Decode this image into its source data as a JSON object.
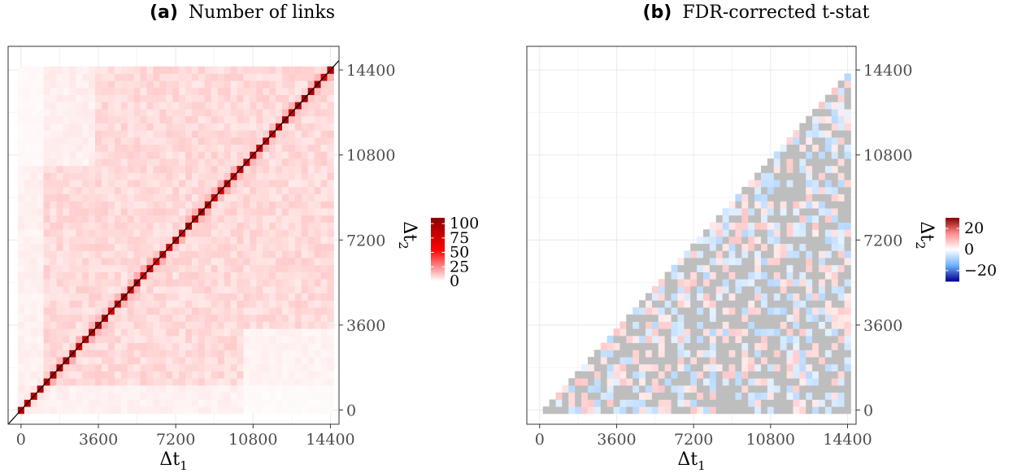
{
  "chart_data": [
    {
      "type": "heatmap",
      "panel": "(a)",
      "title": "Number of links",
      "xlabel": "Δt",
      "xlabel_sub": "1",
      "ylabel": "Δt",
      "ylabel_sub": "2",
      "x_ticks": [
        0,
        3600,
        7200,
        10800,
        14400
      ],
      "y_ticks": [
        0,
        3600,
        7200,
        10800,
        14400
      ],
      "xlim": [
        -600,
        14800
      ],
      "ylim": [
        -600,
        15400
      ],
      "grid_range": [
        0,
        14400
      ],
      "bins": 49,
      "color_scale": [
        "#ffffff",
        "#ff0000",
        "#8b0000"
      ],
      "legend": {
        "breaks": [
          0,
          25,
          50,
          75,
          100
        ],
        "labels": [
          "0",
          "25",
          "50",
          "75",
          "100"
        ],
        "limits": [
          0,
          110
        ],
        "placement": "right"
      },
      "diagonal_line": true,
      "grid": true,
      "typical_offdiag_value": 8,
      "diagonal_value": 90
    },
    {
      "type": "heatmap",
      "panel": "(b)",
      "title": "FDR-corrected t-stat",
      "xlabel": "Δt",
      "xlabel_sub": "1",
      "ylabel": "Δt",
      "ylabel_sub": "2",
      "x_ticks": [
        0,
        3600,
        7200,
        10800,
        14400
      ],
      "y_ticks": [
        0,
        3600,
        7200,
        10800,
        14400
      ],
      "xlim": [
        -600,
        14800
      ],
      "ylim": [
        -600,
        15400
      ],
      "grid_range": [
        0,
        14400
      ],
      "bins": 49,
      "color_scale": [
        "#00008b",
        "#6fb3ff",
        "#ffffff",
        "#ff8f8f",
        "#8b0000"
      ],
      "na_color": "#bebebe",
      "legend": {
        "breaks": [
          -20,
          0,
          20
        ],
        "labels": [
          "−20",
          "0",
          "20"
        ],
        "limits": [
          -30,
          30
        ],
        "placement": "right"
      },
      "triangle": "lower-right",
      "grid": true,
      "fraction_nonsignificant": 0.5,
      "typical_abs_value": 5
    }
  ]
}
